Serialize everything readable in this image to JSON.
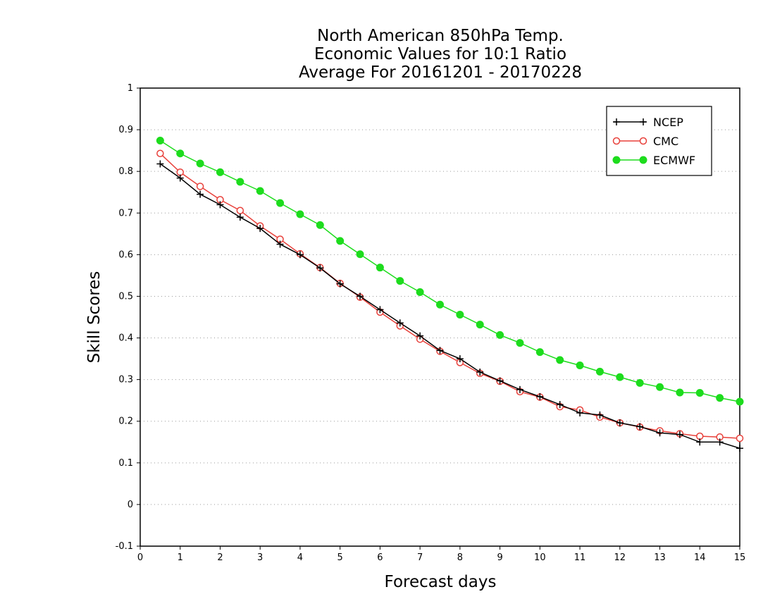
{
  "chart_data": {
    "type": "line",
    "title_lines": [
      "North American 850hPa Temp.",
      "Economic Values for 10:1 Ratio",
      "Average For 20161201 - 20170228"
    ],
    "xlabel": "Forecast days",
    "ylabel": "Skill Scores",
    "xlim": [
      0,
      15
    ],
    "ylim": [
      -0.1,
      1
    ],
    "xticks": [
      0,
      1,
      2,
      3,
      4,
      5,
      6,
      7,
      8,
      9,
      10,
      11,
      12,
      13,
      14,
      15
    ],
    "yticks": [
      -0.1,
      0,
      0.1,
      0.2,
      0.3,
      0.4,
      0.5,
      0.6,
      0.7,
      0.8,
      0.9,
      1
    ],
    "xtick_labels": [
      "0",
      "1",
      "2",
      "3",
      "4",
      "5",
      "6",
      "7",
      "8",
      "9",
      "10",
      "11",
      "12",
      "13",
      "14",
      "15"
    ],
    "ytick_labels": [
      "-0.1",
      "0",
      "0.1",
      "0.2",
      "0.3",
      "0.4",
      "0.5",
      "0.6",
      "0.7",
      "0.8",
      "0.9",
      "1"
    ],
    "grid": "horizontal dotted",
    "legend_position": "top-right",
    "x": [
      0.5,
      1,
      1.5,
      2,
      2.5,
      3,
      3.5,
      4,
      4.5,
      5,
      5.5,
      6,
      6.5,
      7,
      7.5,
      8,
      8.5,
      9,
      9.5,
      10,
      10.5,
      11,
      11.5,
      12,
      12.5,
      13,
      13.5,
      14,
      14.5,
      15
    ],
    "series": [
      {
        "name": "NCEP",
        "color": "#000000",
        "marker": "plus",
        "values": [
          0.818,
          0.784,
          0.745,
          0.72,
          0.69,
          0.663,
          0.625,
          0.6,
          0.568,
          0.53,
          0.5,
          0.468,
          0.436,
          0.405,
          0.37,
          0.35,
          0.318,
          0.297,
          0.276,
          0.259,
          0.24,
          0.22,
          0.215,
          0.196,
          0.187,
          0.172,
          0.168,
          0.15,
          0.15,
          0.135
        ]
      },
      {
        "name": "CMC",
        "color": "#e8403a",
        "marker": "open-circle",
        "values": [
          0.843,
          0.798,
          0.764,
          0.732,
          0.706,
          0.669,
          0.637,
          0.602,
          0.569,
          0.531,
          0.498,
          0.462,
          0.429,
          0.397,
          0.368,
          0.341,
          0.315,
          0.296,
          0.271,
          0.258,
          0.235,
          0.227,
          0.21,
          0.196,
          0.186,
          0.177,
          0.17,
          0.164,
          0.162,
          0.159
        ]
      },
      {
        "name": "ECMWF",
        "color": "#1ddc1d",
        "marker": "filled-circle",
        "values": [
          0.874,
          0.843,
          0.819,
          0.798,
          0.775,
          0.753,
          0.724,
          0.697,
          0.671,
          0.633,
          0.601,
          0.569,
          0.537,
          0.51,
          0.48,
          0.456,
          0.432,
          0.407,
          0.388,
          0.366,
          0.347,
          0.334,
          0.319,
          0.306,
          0.292,
          0.282,
          0.269,
          0.268,
          0.256,
          0.247
        ]
      }
    ]
  }
}
